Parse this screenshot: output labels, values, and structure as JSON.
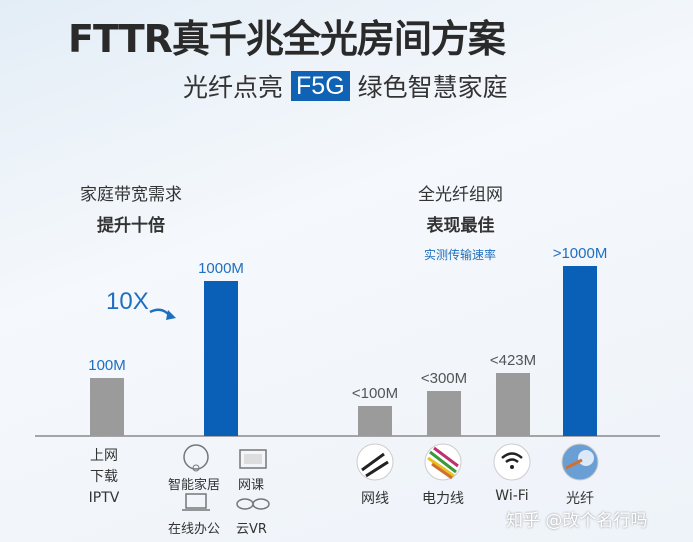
{
  "title": "FTTR真千兆全光房间方案",
  "subtitle": {
    "before": "光纤点亮",
    "highlight": "F5G",
    "after": "绿色智慧家庭"
  },
  "colors": {
    "gray_bar": "#9b9b9b",
    "blue_bar": "#0a5fb6",
    "label_blue": "#1f6fbf"
  },
  "watermark": "知乎 @改个名行吗",
  "chart_data": [
    {
      "type": "bar",
      "title": "家庭带宽需求",
      "subtitle": "提升十倍",
      "annotation": "10X",
      "categories": [
        "上网 下载 IPTV",
        "智能家居 网课 在线办公 云VR"
      ],
      "category_lines": [
        [
          "上网",
          "下载",
          "IPTV"
        ],
        [
          "智能家居",
          "网课",
          "在线办公",
          "云VR"
        ]
      ],
      "values": [
        100,
        1000
      ],
      "data_labels": [
        "100M",
        "1000M"
      ],
      "unit": "M"
    },
    {
      "type": "bar",
      "title": "全光纤组网",
      "subtitle": "表现最佳",
      "note": "实测传输速率",
      "categories": [
        "网线",
        "电力线",
        "Wi-Fi",
        "光纤"
      ],
      "values": [
        100,
        300,
        423,
        1000
      ],
      "data_labels": [
        "<100M",
        "<300M",
        "<423M",
        ">1000M"
      ],
      "unit": "M"
    }
  ]
}
